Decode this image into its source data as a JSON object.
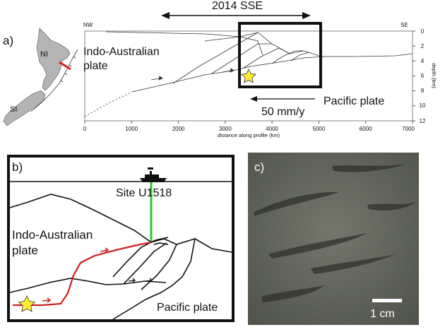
{
  "panel_a": {
    "label": "a)",
    "sse_label": "2014 SSE",
    "nw_label": "NW",
    "se_label": "SE",
    "map_labels": {
      "north_island": "NI",
      "south_island": "SI"
    },
    "plate_upper_line1": "Indo-Australian",
    "plate_upper_line2": "plate",
    "plate_lower": "Pacific plate",
    "rate_label": "50 mm/y",
    "x_axis": {
      "label": "distance along profile (km)",
      "ticks": [
        "0",
        "1000",
        "2000",
        "3000",
        "4000",
        "5000",
        "6000",
        "7000"
      ]
    },
    "y_axis": {
      "label": "depth (km)",
      "ticks": [
        "0",
        "2",
        "4",
        "6",
        "8",
        "10",
        "12"
      ]
    }
  },
  "panel_b": {
    "label": "b)",
    "site_label": "Site U1518",
    "plate_upper_line1": "Indo-Australian",
    "plate_upper_line2": "plate",
    "plate_lower": "Pacific plate"
  },
  "panel_c": {
    "label": "c)",
    "scale_label": "1 cm"
  },
  "colors": {
    "drill_string": "#22cc22",
    "fault_red": "#cc2222",
    "star": "#ffee33",
    "map_land": "#b4b4b4",
    "profile_line": "#e02020",
    "core": "#5b5e50"
  }
}
